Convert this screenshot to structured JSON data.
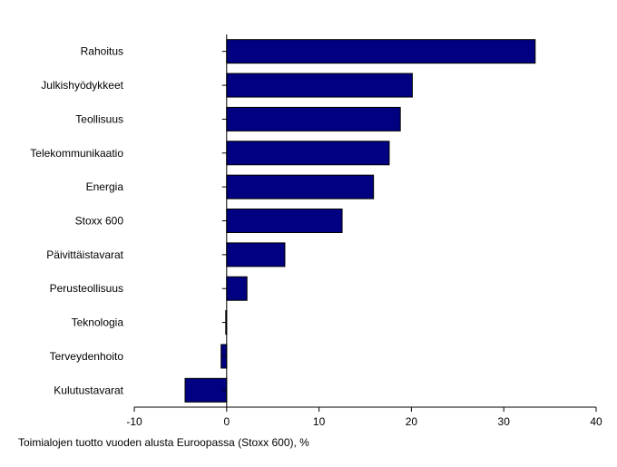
{
  "chart_data": {
    "type": "bar",
    "orientation": "horizontal",
    "title": "",
    "xlabel": "Toimialojen tuotto vuoden alusta Euroopassa (Stoxx 600), %",
    "ylabel": "",
    "xlim": [
      -10,
      40
    ],
    "xticks": [
      -10,
      0,
      10,
      20,
      30,
      40
    ],
    "xtick_labels": [
      "-10",
      "0",
      "10",
      "20",
      "30",
      "40"
    ],
    "categories": [
      "Rahoitus",
      "Julkishyödykkeet",
      "Teollisuus",
      "Telekommunikaatio",
      "Energia",
      "Stoxx 600",
      "Päivittäistavarat",
      "Perusteollisuus",
      "Teknologia",
      "Terveydenhoito",
      "Kulutustavarat"
    ],
    "values": [
      33.4,
      20.1,
      18.8,
      17.6,
      15.9,
      12.5,
      6.3,
      2.2,
      -0.1,
      -0.6,
      -4.5
    ],
    "bar_color": "#000080",
    "grid": false,
    "legend": "none"
  }
}
